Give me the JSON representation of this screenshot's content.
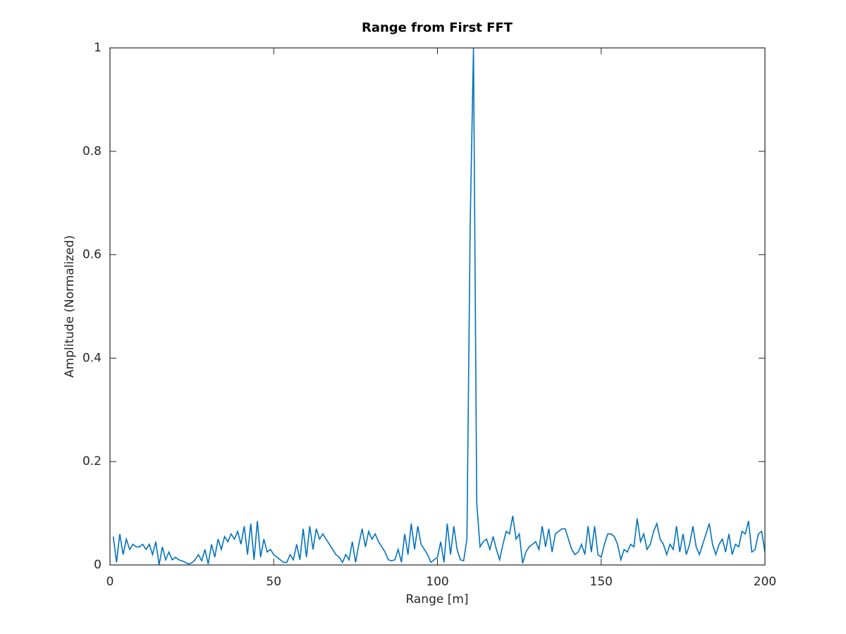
{
  "chart_data": {
    "type": "line",
    "title": "Range from First FFT",
    "xlabel": "Range [m]",
    "ylabel": "Amplitude (Normalized)",
    "x": [
      1,
      2,
      3,
      4,
      5,
      6,
      7,
      8,
      9,
      10,
      11,
      12,
      13,
      14,
      15,
      16,
      17,
      18,
      19,
      20,
      21,
      22,
      23,
      24,
      25,
      26,
      27,
      28,
      29,
      30,
      31,
      32,
      33,
      34,
      35,
      36,
      37,
      38,
      39,
      40,
      41,
      42,
      43,
      44,
      45,
      46,
      47,
      48,
      49,
      50,
      51,
      52,
      53,
      54,
      55,
      56,
      57,
      58,
      59,
      60,
      61,
      62,
      63,
      64,
      65,
      66,
      67,
      68,
      69,
      70,
      71,
      72,
      73,
      74,
      75,
      76,
      77,
      78,
      79,
      80,
      81,
      82,
      83,
      84,
      85,
      86,
      87,
      88,
      89,
      90,
      91,
      92,
      93,
      94,
      95,
      96,
      97,
      98,
      99,
      100,
      101,
      102,
      103,
      104,
      105,
      106,
      107,
      108,
      109,
      110,
      111,
      112,
      113,
      114,
      115,
      116,
      117,
      118,
      119,
      120,
      121,
      122,
      123,
      124,
      125,
      126,
      127,
      128,
      129,
      130,
      131,
      132,
      133,
      134,
      135,
      136,
      137,
      138,
      139,
      140,
      141,
      142,
      143,
      144,
      145,
      146,
      147,
      148,
      149,
      150,
      151,
      152,
      153,
      154,
      155,
      156,
      157,
      158,
      159,
      160,
      161,
      162,
      163,
      164,
      165,
      166,
      167,
      168,
      169,
      170,
      171,
      172,
      173,
      174,
      175,
      176,
      177,
      178,
      179,
      180,
      181,
      182,
      183,
      184,
      185,
      186,
      187,
      188,
      189,
      190,
      191,
      192,
      193,
      194,
      195,
      196,
      197,
      198,
      199,
      200
    ],
    "series": [
      {
        "color": "#0072bd",
        "values": [
          0.055,
          0.005,
          0.06,
          0.02,
          0.05,
          0.03,
          0.04,
          0.035,
          0.035,
          0.04,
          0.03,
          0.04,
          0.02,
          0.045,
          0.0,
          0.035,
          0.01,
          0.025,
          0.01,
          0.015,
          0.01,
          0.008,
          0.005,
          0.002,
          0.004,
          0.01,
          0.02,
          0.008,
          0.03,
          0.002,
          0.04,
          0.015,
          0.05,
          0.03,
          0.055,
          0.045,
          0.06,
          0.05,
          0.065,
          0.04,
          0.075,
          0.02,
          0.08,
          0.01,
          0.085,
          0.015,
          0.05,
          0.025,
          0.03,
          0.02,
          0.015,
          0.01,
          0.005,
          0.005,
          0.02,
          0.01,
          0.04,
          0.01,
          0.07,
          0.015,
          0.075,
          0.03,
          0.07,
          0.05,
          0.06,
          0.05,
          0.04,
          0.03,
          0.02,
          0.015,
          0.005,
          0.02,
          0.01,
          0.045,
          0.005,
          0.04,
          0.07,
          0.035,
          0.065,
          0.05,
          0.06,
          0.045,
          0.035,
          0.025,
          0.01,
          0.008,
          0.01,
          0.03,
          0.005,
          0.06,
          0.02,
          0.08,
          0.03,
          0.075,
          0.04,
          0.03,
          0.02,
          0.005,
          0.01,
          0.015,
          0.045,
          0.005,
          0.08,
          0.02,
          0.075,
          0.03,
          0.01,
          0.008,
          0.05,
          0.66,
          1.0,
          0.12,
          0.035,
          0.045,
          0.05,
          0.03,
          0.055,
          0.03,
          0.01,
          0.04,
          0.065,
          0.06,
          0.095,
          0.05,
          0.06,
          0.003,
          0.025,
          0.035,
          0.04,
          0.045,
          0.03,
          0.075,
          0.035,
          0.07,
          0.025,
          0.06,
          0.065,
          0.07,
          0.07,
          0.05,
          0.03,
          0.02,
          0.025,
          0.04,
          0.02,
          0.075,
          0.025,
          0.075,
          0.02,
          0.015,
          0.04,
          0.06,
          0.06,
          0.055,
          0.04,
          0.01,
          0.03,
          0.025,
          0.04,
          0.035,
          0.09,
          0.045,
          0.06,
          0.03,
          0.04,
          0.065,
          0.08,
          0.05,
          0.04,
          0.02,
          0.04,
          0.03,
          0.075,
          0.025,
          0.06,
          0.02,
          0.04,
          0.075,
          0.035,
          0.02,
          0.04,
          0.06,
          0.08,
          0.04,
          0.02,
          0.04,
          0.05,
          0.025,
          0.06,
          0.02,
          0.04,
          0.035,
          0.065,
          0.06,
          0.085,
          0.025,
          0.03,
          0.06,
          0.065,
          0.025
        ]
      }
    ],
    "xlim": [
      0,
      200
    ],
    "ylim": [
      0,
      1
    ],
    "xticks": [
      0,
      50,
      100,
      150,
      200
    ],
    "yticks": [
      0,
      0.2,
      0.4,
      0.6,
      0.8,
      1
    ]
  }
}
